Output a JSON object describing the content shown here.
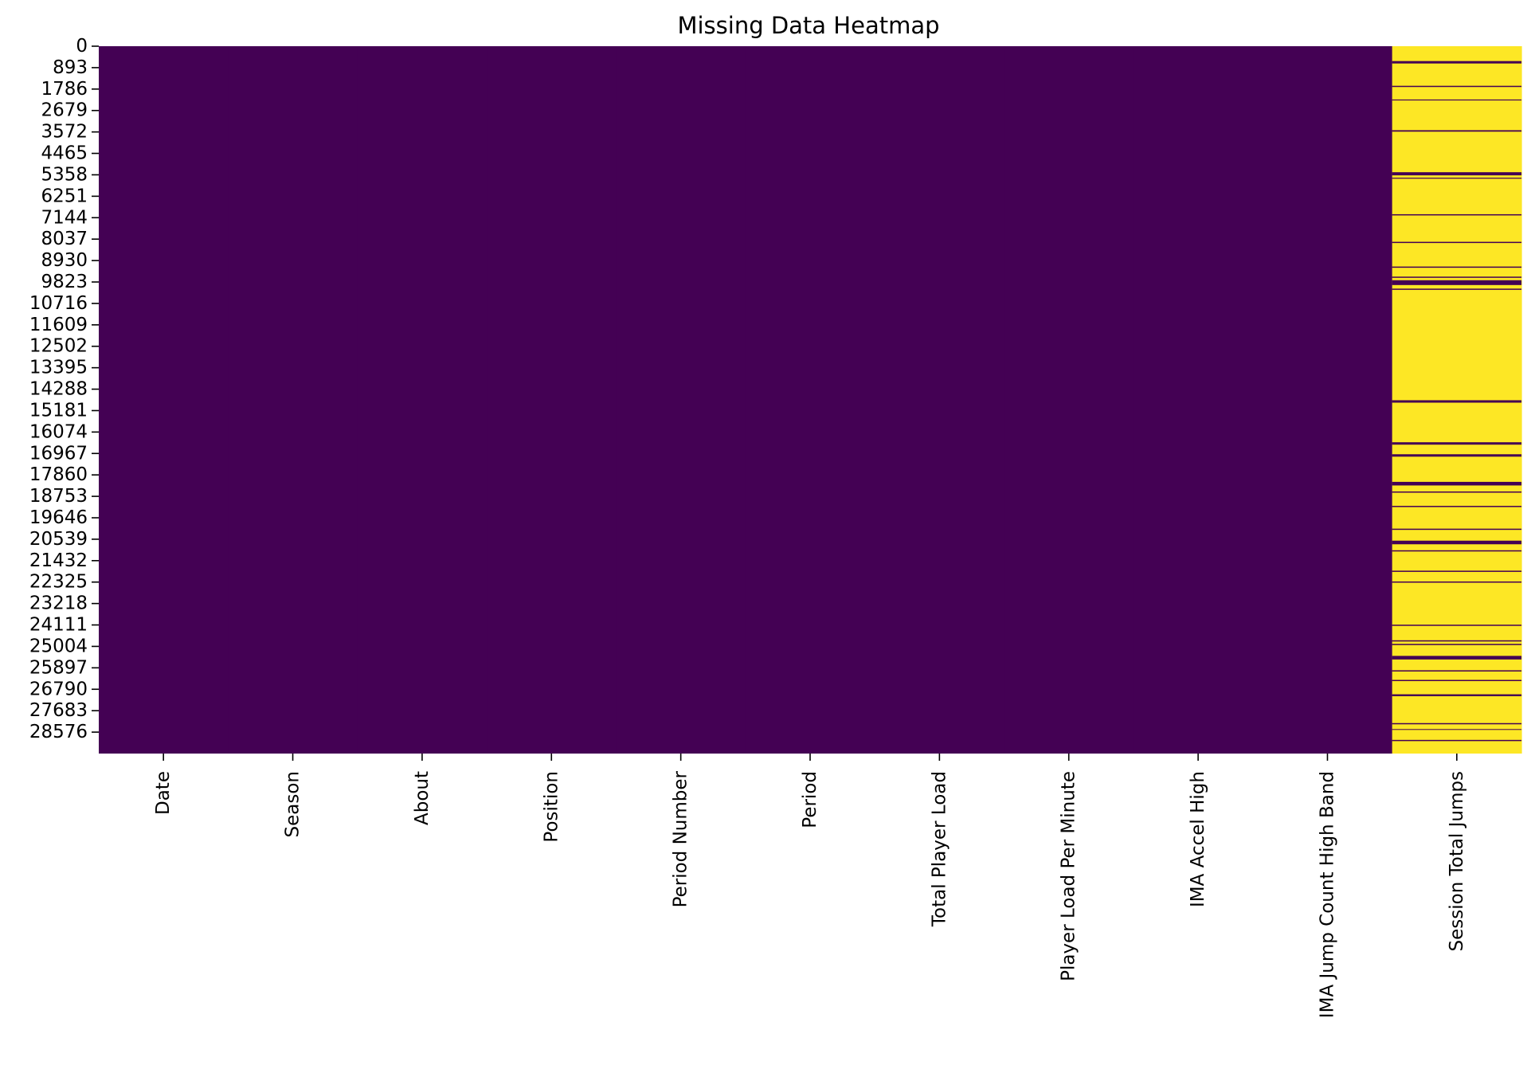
{
  "chart_data": {
    "type": "heatmap",
    "title": "Missing Data Heatmap",
    "xlabel": "",
    "ylabel": "",
    "columns": [
      "Date",
      "Season",
      "About",
      "Position",
      "Period Number",
      "Period",
      "Total Player Load",
      "Player Load Per Minute",
      "IMA Accel High",
      "IMA Jump Count High Band",
      "Session Total Jumps"
    ],
    "row_count": 29469,
    "y_tick_labels": [
      "0",
      "893",
      "1786",
      "2679",
      "3572",
      "4465",
      "5358",
      "6251",
      "7144",
      "8037",
      "8930",
      "9823",
      "10716",
      "11609",
      "12502",
      "13395",
      "14288",
      "15181",
      "16074",
      "16967",
      "17860",
      "18753",
      "19646",
      "20539",
      "21432",
      "22325",
      "23218",
      "24111",
      "25004",
      "25897",
      "26790",
      "27683",
      "28576"
    ],
    "colors": {
      "present": "#440154",
      "missing": "#fde725"
    },
    "colorbar": false,
    "missing_fraction_by_column": {
      "Date": 0,
      "Season": 0,
      "About": 0,
      "Position": 0,
      "Period Number": 0,
      "Period": 0,
      "Total Player Load": 0,
      "Player Load Per Minute": 0,
      "IMA Accel High": 0,
      "IMA Jump Count High Band": 0,
      "Session Total Jumps": 0.9
    },
    "present_row_ranges": {
      "Session Total Jumps": [
        [
          620,
          720
        ],
        [
          1650,
          1700
        ],
        [
          2220,
          2260
        ],
        [
          3500,
          3560
        ],
        [
          5250,
          5380
        ],
        [
          5480,
          5520
        ],
        [
          7000,
          7050
        ],
        [
          8150,
          8200
        ],
        [
          9180,
          9230
        ],
        [
          9600,
          9650
        ],
        [
          9750,
          9950
        ],
        [
          10100,
          10150
        ],
        [
          14750,
          14850
        ],
        [
          16500,
          16600
        ],
        [
          17000,
          17100
        ],
        [
          18150,
          18300
        ],
        [
          18550,
          18600
        ],
        [
          19150,
          19200
        ],
        [
          20100,
          20150
        ],
        [
          20600,
          20750
        ],
        [
          21000,
          21050
        ],
        [
          21850,
          21900
        ],
        [
          22300,
          22350
        ],
        [
          24100,
          24150
        ],
        [
          24750,
          24800
        ],
        [
          24900,
          24950
        ],
        [
          25400,
          25550
        ],
        [
          26000,
          26050
        ],
        [
          26400,
          26450
        ],
        [
          27000,
          27080
        ],
        [
          28200,
          28250
        ],
        [
          28450,
          28480
        ],
        [
          28900,
          28950
        ]
      ]
    }
  }
}
